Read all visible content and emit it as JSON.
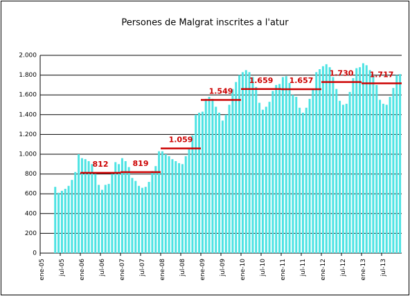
{
  "chart_data": {
    "type": "bar",
    "title": "Persones de Malgrat inscrites a l'atur",
    "categories": [
      "ene-05",
      null,
      null,
      null,
      null,
      null,
      "jul-05",
      null,
      null,
      null,
      null,
      null,
      "ene-06",
      null,
      null,
      null,
      null,
      null,
      "jul-06",
      null,
      null,
      null,
      null,
      null,
      "ene-07",
      null,
      null,
      null,
      null,
      null,
      "jul-07",
      null,
      null,
      null,
      null,
      null,
      "ene-08",
      null,
      null,
      null,
      null,
      null,
      "jul-08",
      null,
      null,
      null,
      null,
      null,
      "ene-09",
      null,
      null,
      null,
      null,
      null,
      "jul-09",
      null,
      null,
      null,
      null,
      null,
      "ene-10",
      null,
      null,
      null,
      null,
      null,
      "jul-10",
      null,
      null,
      null,
      null,
      null,
      "ene-11",
      null,
      null,
      null,
      null,
      null,
      "jul-11",
      null,
      null,
      null,
      null,
      null,
      "ene-12",
      null,
      null,
      null,
      null,
      null,
      "jul-12",
      null,
      null,
      null,
      null,
      null,
      "ene-13",
      null,
      null,
      null,
      null,
      null,
      "jul-13",
      null,
      null,
      null,
      null,
      null
    ],
    "values": [
      null,
      null,
      null,
      null,
      670,
      610,
      630,
      650,
      680,
      740,
      820,
      1000,
      960,
      950,
      930,
      900,
      800,
      690,
      640,
      690,
      700,
      800,
      920,
      900,
      960,
      930,
      870,
      760,
      730,
      680,
      660,
      670,
      720,
      830,
      880,
      1030,
      1030,
      1000,
      980,
      950,
      930,
      910,
      900,
      980,
      1050,
      1190,
      1400,
      1420,
      1430,
      1560,
      1580,
      1560,
      1480,
      1420,
      1340,
      1400,
      1500,
      1660,
      1730,
      1800,
      1830,
      1850,
      1830,
      1780,
      1680,
      1520,
      1450,
      1480,
      1530,
      1640,
      1700,
      1710,
      1780,
      1790,
      1720,
      1600,
      1580,
      1470,
      1420,
      1470,
      1560,
      1660,
      1830,
      1860,
      1890,
      1910,
      1880,
      1780,
      1660,
      1540,
      1500,
      1510,
      1630,
      1770,
      1870,
      1880,
      1920,
      1900,
      1850,
      1790,
      1700,
      1550,
      1510,
      1500,
      1580,
      1670,
      1800,
      1810
    ],
    "color": "#4de3e3",
    "averages": {
      "color": "#cc0000",
      "values": [
        null,
        812,
        819,
        1059,
        1549,
        1659,
        1657,
        1730,
        1717
      ],
      "value_labels": [
        null,
        "812",
        "819",
        "1.059",
        "1.549",
        "1.659",
        "1.657",
        "1.730",
        "1.717"
      ]
    },
    "ylim": [
      0,
      2000
    ],
    "yticks": [
      0,
      200,
      400,
      600,
      800,
      {
        "value": 1000,
        "label": "1.000"
      },
      {
        "value": 1200,
        "label": "1.200"
      },
      {
        "value": 1400,
        "label": "1.400"
      },
      {
        "value": 1600,
        "label": "1.600"
      },
      {
        "value": 1800,
        "label": "1.800"
      },
      {
        "value": 2000,
        "label": "2.000"
      }
    ],
    "grid": true
  }
}
